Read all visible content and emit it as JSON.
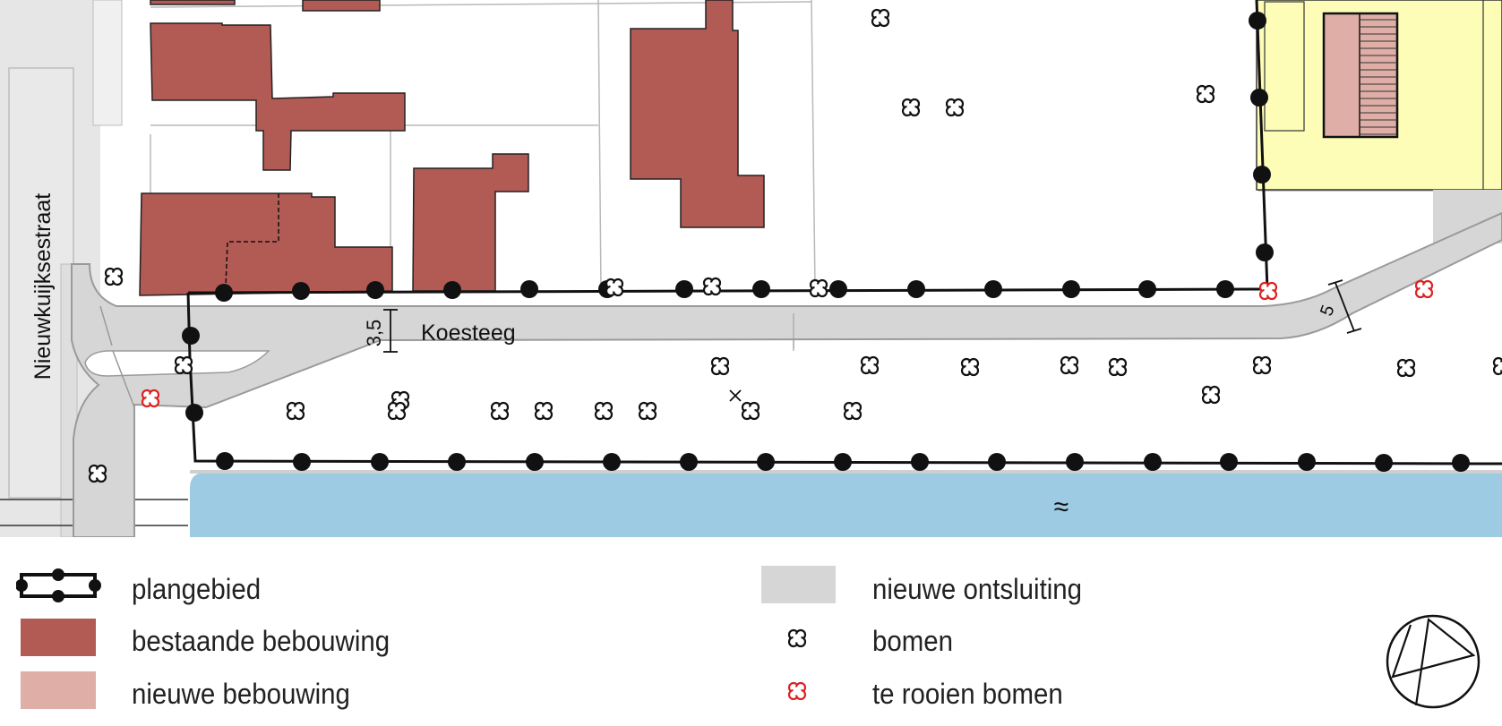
{
  "map": {
    "street_labels": {
      "nieuwkuijksestraat": "Nieuwkuijksestraat",
      "koesteeg": "Koesteeg"
    },
    "dimensions": {
      "left_road_width": "3,5",
      "right_road_width": "5"
    },
    "water_symbol": "≈"
  },
  "legend": {
    "items": [
      {
        "label": "plangebied",
        "symbol": "boundary-line-with-dots"
      },
      {
        "label": "bestaande bebouwing",
        "symbol": "fill",
        "color": "#b25a54"
      },
      {
        "label": "nieuwe bebouwing",
        "symbol": "fill",
        "color": "#dfaea7"
      },
      {
        "label": "nieuwe ontsluiting",
        "symbol": "fill",
        "color": "#d6d6d6"
      },
      {
        "label": "bomen",
        "symbol": "tree-icon",
        "color": "#111111"
      },
      {
        "label": "te rooien bomen",
        "symbol": "tree-icon",
        "color": "#dd2222"
      }
    ]
  },
  "north_arrow": {
    "symbol": "compass-icon"
  },
  "colors": {
    "existing_building": "#b25a54",
    "new_building": "#dfaea7",
    "road": "#d6d6d6",
    "water": "#9ccbe3",
    "yellow_parcel": "#fdfdb8",
    "plan_boundary": "#111111",
    "tree": "#111111",
    "tree_removed": "#dd2222"
  }
}
